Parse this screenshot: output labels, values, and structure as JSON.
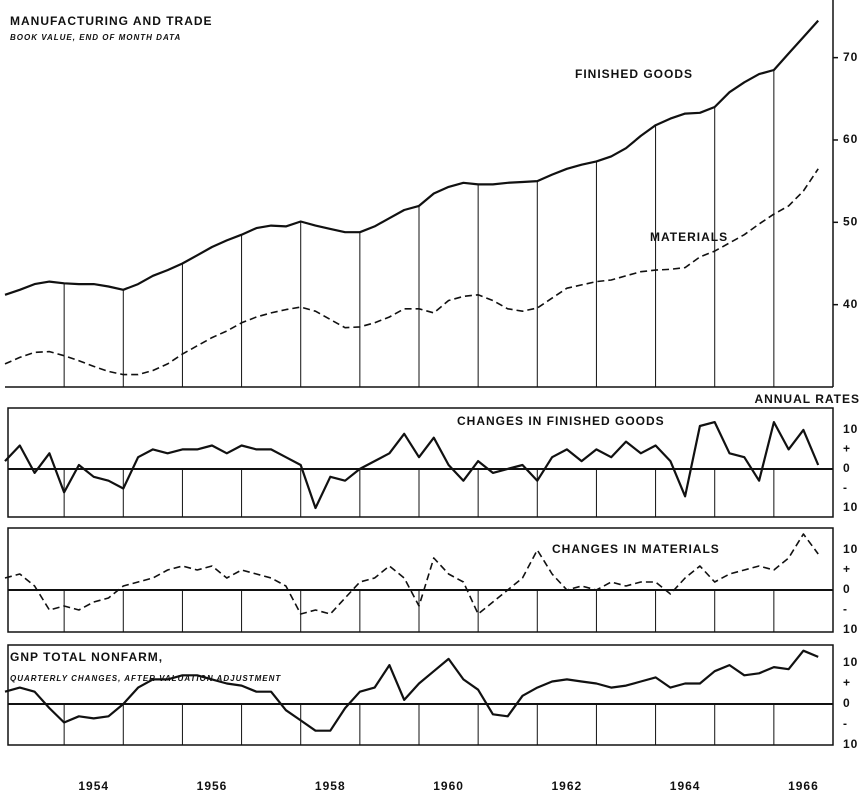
{
  "chart_data": [
    {
      "type": "line",
      "title": "MANUFACTURING AND TRADE",
      "subtitle": "BOOK VALUE, END OF MONTH DATA",
      "x": [
        1953,
        1953.25,
        1953.5,
        1953.75,
        1954,
        1954.25,
        1954.5,
        1954.75,
        1955,
        1955.25,
        1955.5,
        1955.75,
        1956,
        1956.25,
        1956.5,
        1956.75,
        1957,
        1957.25,
        1957.5,
        1957.75,
        1958,
        1958.25,
        1958.5,
        1958.75,
        1959,
        1959.25,
        1959.5,
        1959.75,
        1960,
        1960.25,
        1960.5,
        1960.75,
        1961,
        1961.25,
        1961.5,
        1961.75,
        1962,
        1962.25,
        1962.5,
        1962.75,
        1963,
        1963.25,
        1963.5,
        1963.75,
        1964,
        1964.25,
        1964.5,
        1964.75,
        1965,
        1965.25,
        1965.5,
        1965.75,
        1966,
        1966.25,
        1966.5,
        1966.75
      ],
      "series": [
        {
          "name": "FINISHED GOODS",
          "color": "#111111",
          "dashed": false,
          "values": [
            41.2,
            41.8,
            42.5,
            42.8,
            42.6,
            42.5,
            42.5,
            42.2,
            41.8,
            42.5,
            43.5,
            44.2,
            45,
            46,
            47,
            47.8,
            48.5,
            49.3,
            49.6,
            49.5,
            50.1,
            49.6,
            49.2,
            48.8,
            48.8,
            49.5,
            50.5,
            51.5,
            52,
            53.5,
            54.3,
            54.8,
            54.6,
            54.6,
            54.8,
            54.9,
            55,
            55.8,
            56.5,
            57,
            57.4,
            58,
            59,
            60.5,
            61.8,
            62.6,
            63.2,
            63.3,
            64,
            65.8,
            67,
            68,
            68.5,
            70.5,
            72.5,
            74.5
          ]
        },
        {
          "name": "MATERIALS",
          "color": "#111111",
          "dashed": true,
          "values": [
            32.8,
            33.6,
            34.2,
            34.3,
            33.8,
            33.2,
            32.5,
            31.9,
            31.5,
            31.5,
            32,
            32.8,
            34,
            35,
            36,
            36.8,
            37.8,
            38.5,
            39,
            39.4,
            39.7,
            39.2,
            38.2,
            37.2,
            37.3,
            37.8,
            38.5,
            39.5,
            39.5,
            39,
            40.5,
            41,
            41.2,
            40.5,
            39.5,
            39.2,
            39.6,
            40.8,
            42,
            42.4,
            42.8,
            43,
            43.5,
            44,
            44.2,
            44.3,
            44.5,
            45.8,
            46.5,
            47.5,
            48.5,
            49.8,
            51,
            52,
            53.8,
            56.5
          ]
        }
      ],
      "xlim": [
        1953,
        1967
      ],
      "xgrid": [
        1954,
        1955,
        1956,
        1957,
        1958,
        1959,
        1960,
        1961,
        1962,
        1963,
        1964,
        1965,
        1966
      ],
      "ylim": [
        30,
        77
      ],
      "yticks": [
        40,
        50,
        60,
        70
      ]
    },
    {
      "type": "line",
      "title": "CHANGES IN FINISHED GOODS",
      "annotation": "ANNUAL RATES",
      "x": [
        1953,
        1953.25,
        1953.5,
        1953.75,
        1954,
        1954.25,
        1954.5,
        1954.75,
        1955,
        1955.25,
        1955.5,
        1955.75,
        1956,
        1956.25,
        1956.5,
        1956.75,
        1957,
        1957.25,
        1957.5,
        1957.75,
        1958,
        1958.25,
        1958.5,
        1958.75,
        1959,
        1959.25,
        1959.5,
        1959.75,
        1960,
        1960.25,
        1960.5,
        1960.75,
        1961,
        1961.25,
        1961.5,
        1961.75,
        1962,
        1962.25,
        1962.5,
        1962.75,
        1963,
        1963.25,
        1963.5,
        1963.75,
        1964,
        1964.25,
        1964.5,
        1964.75,
        1965,
        1965.25,
        1965.5,
        1965.75,
        1966,
        1966.25,
        1966.5,
        1966.75
      ],
      "values": [
        2,
        6,
        -1,
        4,
        -6,
        1,
        -2,
        -3,
        -5,
        3,
        5,
        4,
        5,
        5,
        6,
        4,
        6,
        5,
        5,
        3,
        1,
        -10,
        -2,
        -3,
        0,
        2,
        4,
        9,
        3,
        8,
        1,
        -3,
        2,
        -1,
        0,
        1,
        -3,
        3,
        5,
        2,
        5,
        3,
        7,
        4,
        6,
        2,
        -7,
        11,
        12,
        4,
        3,
        -3,
        12,
        5,
        10,
        1
      ],
      "color": "#111111",
      "dashed": false,
      "xlim": [
        1953,
        1967
      ],
      "xgrid": [
        1954,
        1955,
        1956,
        1957,
        1958,
        1959,
        1960,
        1961,
        1962,
        1963,
        1964,
        1965,
        1966
      ],
      "ylim": [
        -12.3,
        15.6
      ],
      "yticks": [
        {
          "value": 10,
          "label": "10"
        },
        {
          "value": 5,
          "label": "+"
        },
        0,
        {
          "value": -5,
          "label": "-"
        },
        {
          "value": -10,
          "label": "10"
        }
      ]
    },
    {
      "type": "line",
      "title": "CHANGES IN MATERIALS",
      "x": [
        1953,
        1953.25,
        1953.5,
        1953.75,
        1954,
        1954.25,
        1954.5,
        1954.75,
        1955,
        1955.25,
        1955.5,
        1955.75,
        1956,
        1956.25,
        1956.5,
        1956.75,
        1957,
        1957.25,
        1957.5,
        1957.75,
        1958,
        1958.25,
        1958.5,
        1958.75,
        1959,
        1959.25,
        1959.5,
        1959.75,
        1960,
        1960.25,
        1960.5,
        1960.75,
        1961,
        1961.25,
        1961.5,
        1961.75,
        1962,
        1962.25,
        1962.5,
        1962.75,
        1963,
        1963.25,
        1963.5,
        1963.75,
        1964,
        1964.25,
        1964.5,
        1964.75,
        1965,
        1965.25,
        1965.5,
        1965.75,
        1966,
        1966.25,
        1966.5,
        1966.75
      ],
      "values": [
        3,
        4,
        1,
        -5,
        -4,
        -5,
        -3,
        -2,
        1,
        2,
        3,
        5,
        6,
        5,
        6,
        3,
        5,
        4,
        3,
        1,
        -6,
        -5,
        -6,
        -2,
        2,
        3,
        6,
        3,
        -4,
        8,
        4,
        2,
        -6,
        -3,
        0,
        3,
        10,
        4,
        0,
        1,
        0,
        2,
        1,
        2,
        2,
        -1,
        3,
        6,
        2,
        4,
        5,
        6,
        5,
        8,
        14,
        9
      ],
      "color": "#111111",
      "dashed": true,
      "xlim": [
        1953,
        1967
      ],
      "xgrid": [
        1954,
        1955,
        1956,
        1957,
        1958,
        1959,
        1960,
        1961,
        1962,
        1963,
        1964,
        1965,
        1966
      ],
      "ylim": [
        -10.5,
        15.5
      ],
      "yticks": [
        {
          "value": 10,
          "label": "10"
        },
        {
          "value": 5,
          "label": "+"
        },
        0,
        {
          "value": -5,
          "label": "-"
        },
        {
          "value": -10,
          "label": "10"
        }
      ]
    },
    {
      "type": "line",
      "title": "GNP TOTAL NONFARM,",
      "subtitle": "QUARTERLY CHANGES, AFTER VALUATION ADJUSTMENT",
      "x": [
        1953,
        1953.25,
        1953.5,
        1953.75,
        1954,
        1954.25,
        1954.5,
        1954.75,
        1955,
        1955.25,
        1955.5,
        1955.75,
        1956,
        1956.25,
        1956.5,
        1956.75,
        1957,
        1957.25,
        1957.5,
        1957.75,
        1958,
        1958.25,
        1958.5,
        1958.75,
        1959,
        1959.25,
        1959.5,
        1959.75,
        1960,
        1960.25,
        1960.5,
        1960.75,
        1961,
        1961.25,
        1961.5,
        1961.75,
        1962,
        1962.25,
        1962.5,
        1962.75,
        1963,
        1963.25,
        1963.5,
        1963.75,
        1964,
        1964.25,
        1964.5,
        1964.75,
        1965,
        1965.25,
        1965.5,
        1965.75,
        1966,
        1966.25,
        1966.5,
        1966.75
      ],
      "values": [
        3,
        4,
        3,
        -1,
        -4.5,
        -3,
        -3.5,
        -3,
        0,
        4,
        6,
        6,
        7,
        7,
        6,
        5,
        4.5,
        3,
        3,
        -1.5,
        -4,
        -6.5,
        -6.5,
        -1,
        3,
        4,
        9.5,
        1,
        5,
        8,
        11,
        6,
        3.5,
        -2.5,
        -3,
        2,
        4,
        5.5,
        6,
        5.5,
        5,
        4,
        4.5,
        5.5,
        6.5,
        4,
        5,
        5,
        8,
        9.5,
        7,
        7.5,
        9,
        8.5,
        13,
        11.5
      ],
      "color": "#111111",
      "dashed": false,
      "xlim": [
        1953,
        1967
      ],
      "xgrid": [
        1954,
        1955,
        1956,
        1957,
        1958,
        1959,
        1960,
        1961,
        1962,
        1963,
        1964,
        1965,
        1966
      ],
      "xticks": [
        {
          "value": 1954.5,
          "label": "1954"
        },
        {
          "value": 1956.5,
          "label": "1956"
        },
        {
          "value": 1958.5,
          "label": "1958"
        },
        {
          "value": 1960.5,
          "label": "1960"
        },
        {
          "value": 1962.5,
          "label": "1962"
        },
        {
          "value": 1964.5,
          "label": "1964"
        },
        {
          "value": 1966.5,
          "label": "1966"
        }
      ],
      "ylim": [
        -10,
        14.4
      ],
      "yticks": [
        {
          "value": 10,
          "label": "10"
        },
        {
          "value": 5,
          "label": "+"
        },
        0,
        {
          "value": -5,
          "label": "-"
        },
        {
          "value": -10,
          "label": "10"
        }
      ]
    }
  ]
}
